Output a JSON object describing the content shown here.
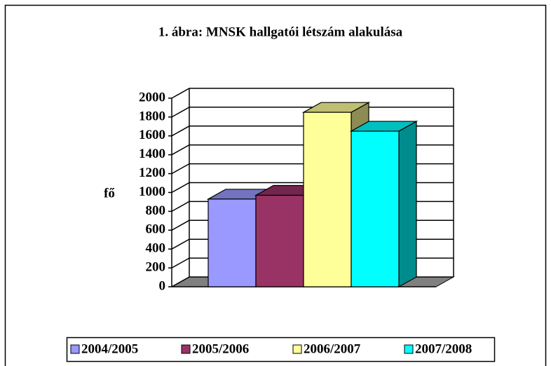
{
  "chart_data": {
    "type": "bar3d",
    "title": "1. ábra: MNSK hallgatói létszám alakulása",
    "y_label": "fő",
    "series": [
      {
        "name": "2004/2005",
        "color": "#9999ff",
        "values": [
          930
        ]
      },
      {
        "name": "2005/2006",
        "color": "#993366",
        "values": [
          970
        ]
      },
      {
        "name": "2006/2007",
        "color": "#ffff99",
        "values": [
          1850
        ]
      },
      {
        "name": "2007/2008",
        "color": "#00ffff",
        "values": [
          1650
        ]
      }
    ],
    "ylim": [
      0,
      2000
    ],
    "yticks": [
      0,
      200,
      400,
      600,
      800,
      1000,
      1200,
      1400,
      1600,
      1800,
      2000
    ],
    "grid": true
  }
}
